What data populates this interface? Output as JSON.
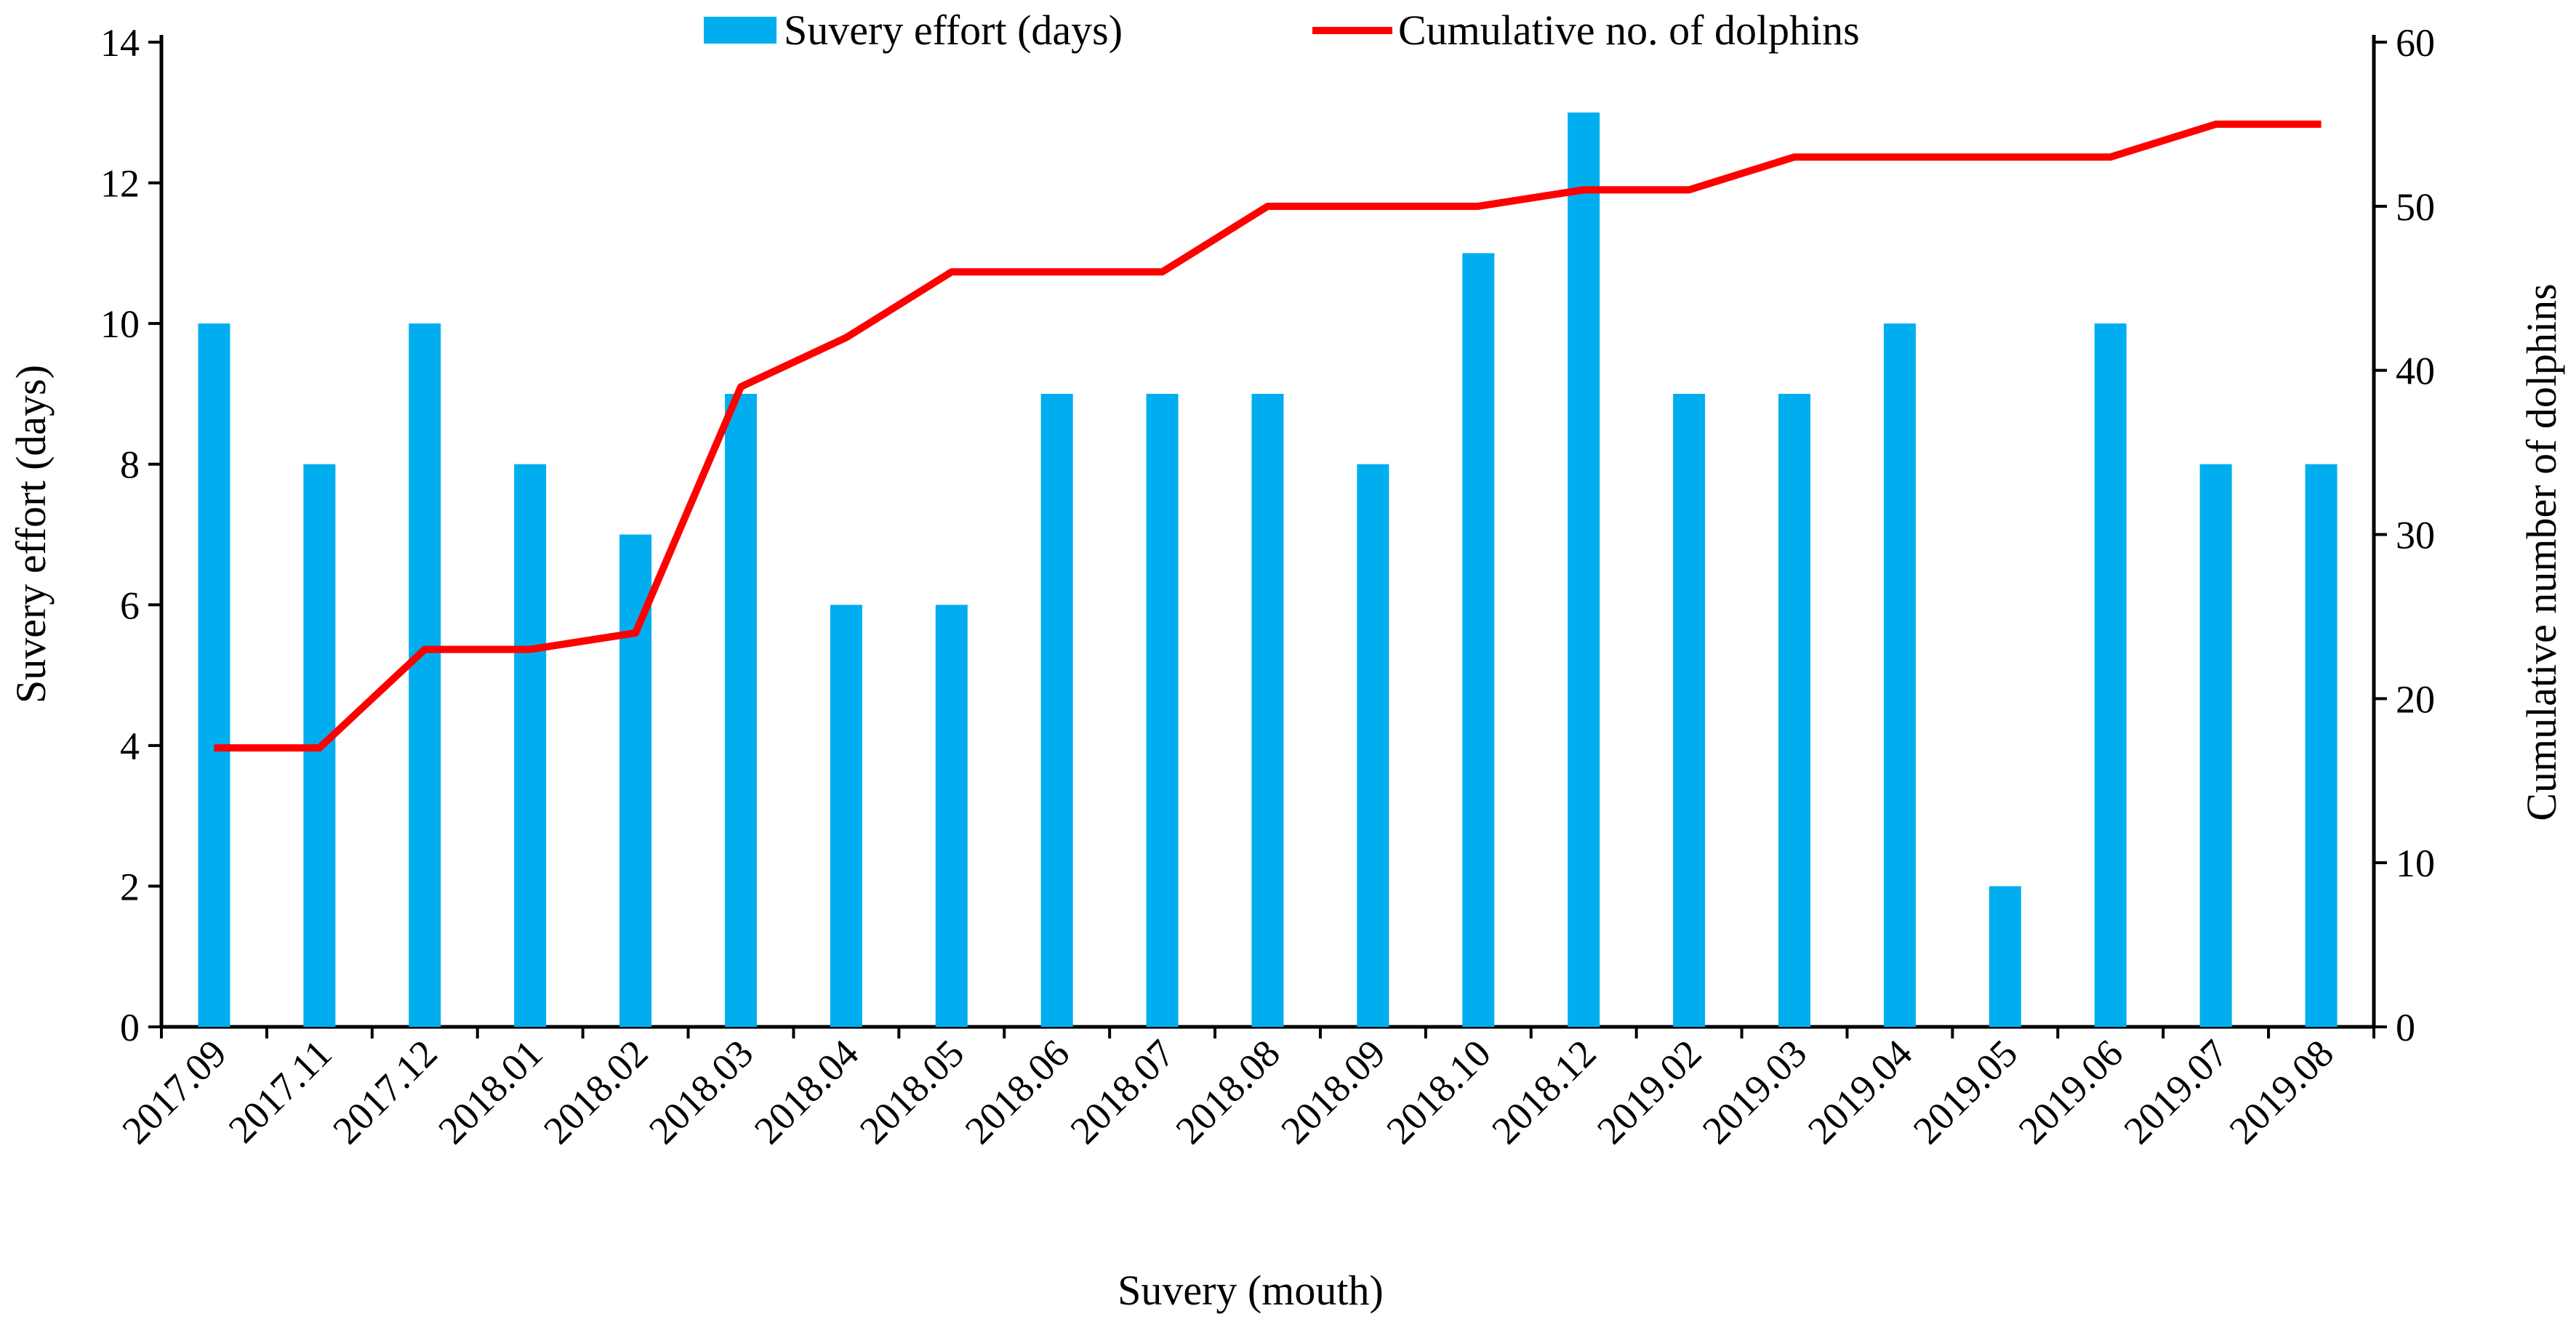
{
  "chart_data": {
    "type": "bar+line",
    "categories": [
      "2017.09",
      "2017.11",
      "2017.12",
      "2018.01",
      "2018.02",
      "2018.03",
      "2018.04",
      "2018.05",
      "2018.06",
      "2018.07",
      "2018.08",
      "2018.09",
      "2018.10",
      "2018.12",
      "2019.02",
      "2019.03",
      "2019.04",
      "2019.05",
      "2019.06",
      "2019.07",
      "2019.08"
    ],
    "series": [
      {
        "name": "Suvery effort (days)",
        "type": "bar",
        "axis": "left",
        "color": "#00AEEF",
        "values": [
          10,
          8,
          10,
          8,
          7,
          9,
          6,
          6,
          9,
          9,
          9,
          8,
          11,
          13,
          9,
          9,
          10,
          2,
          10,
          8,
          8
        ]
      },
      {
        "name": "Cumulative no. of dolphins",
        "type": "line",
        "axis": "right",
        "color": "#FF0000",
        "values": [
          17,
          17,
          23,
          23,
          24,
          39,
          42,
          46,
          46,
          46,
          50,
          50,
          50,
          51,
          51,
          53,
          53,
          53,
          53,
          55,
          55
        ]
      }
    ],
    "xlabel": "Suvery (mouth)",
    "ylabel": "Suvery effort (days)",
    "y2label": "Cumulative number of dolphins",
    "ylim": [
      0,
      14
    ],
    "yticks": [
      0,
      2,
      4,
      6,
      8,
      10,
      12,
      14
    ],
    "y2lim": [
      0,
      60
    ],
    "y2ticks": [
      0,
      10,
      20,
      30,
      40,
      50,
      60
    ],
    "legend_position": "top-center",
    "grid": false
  }
}
